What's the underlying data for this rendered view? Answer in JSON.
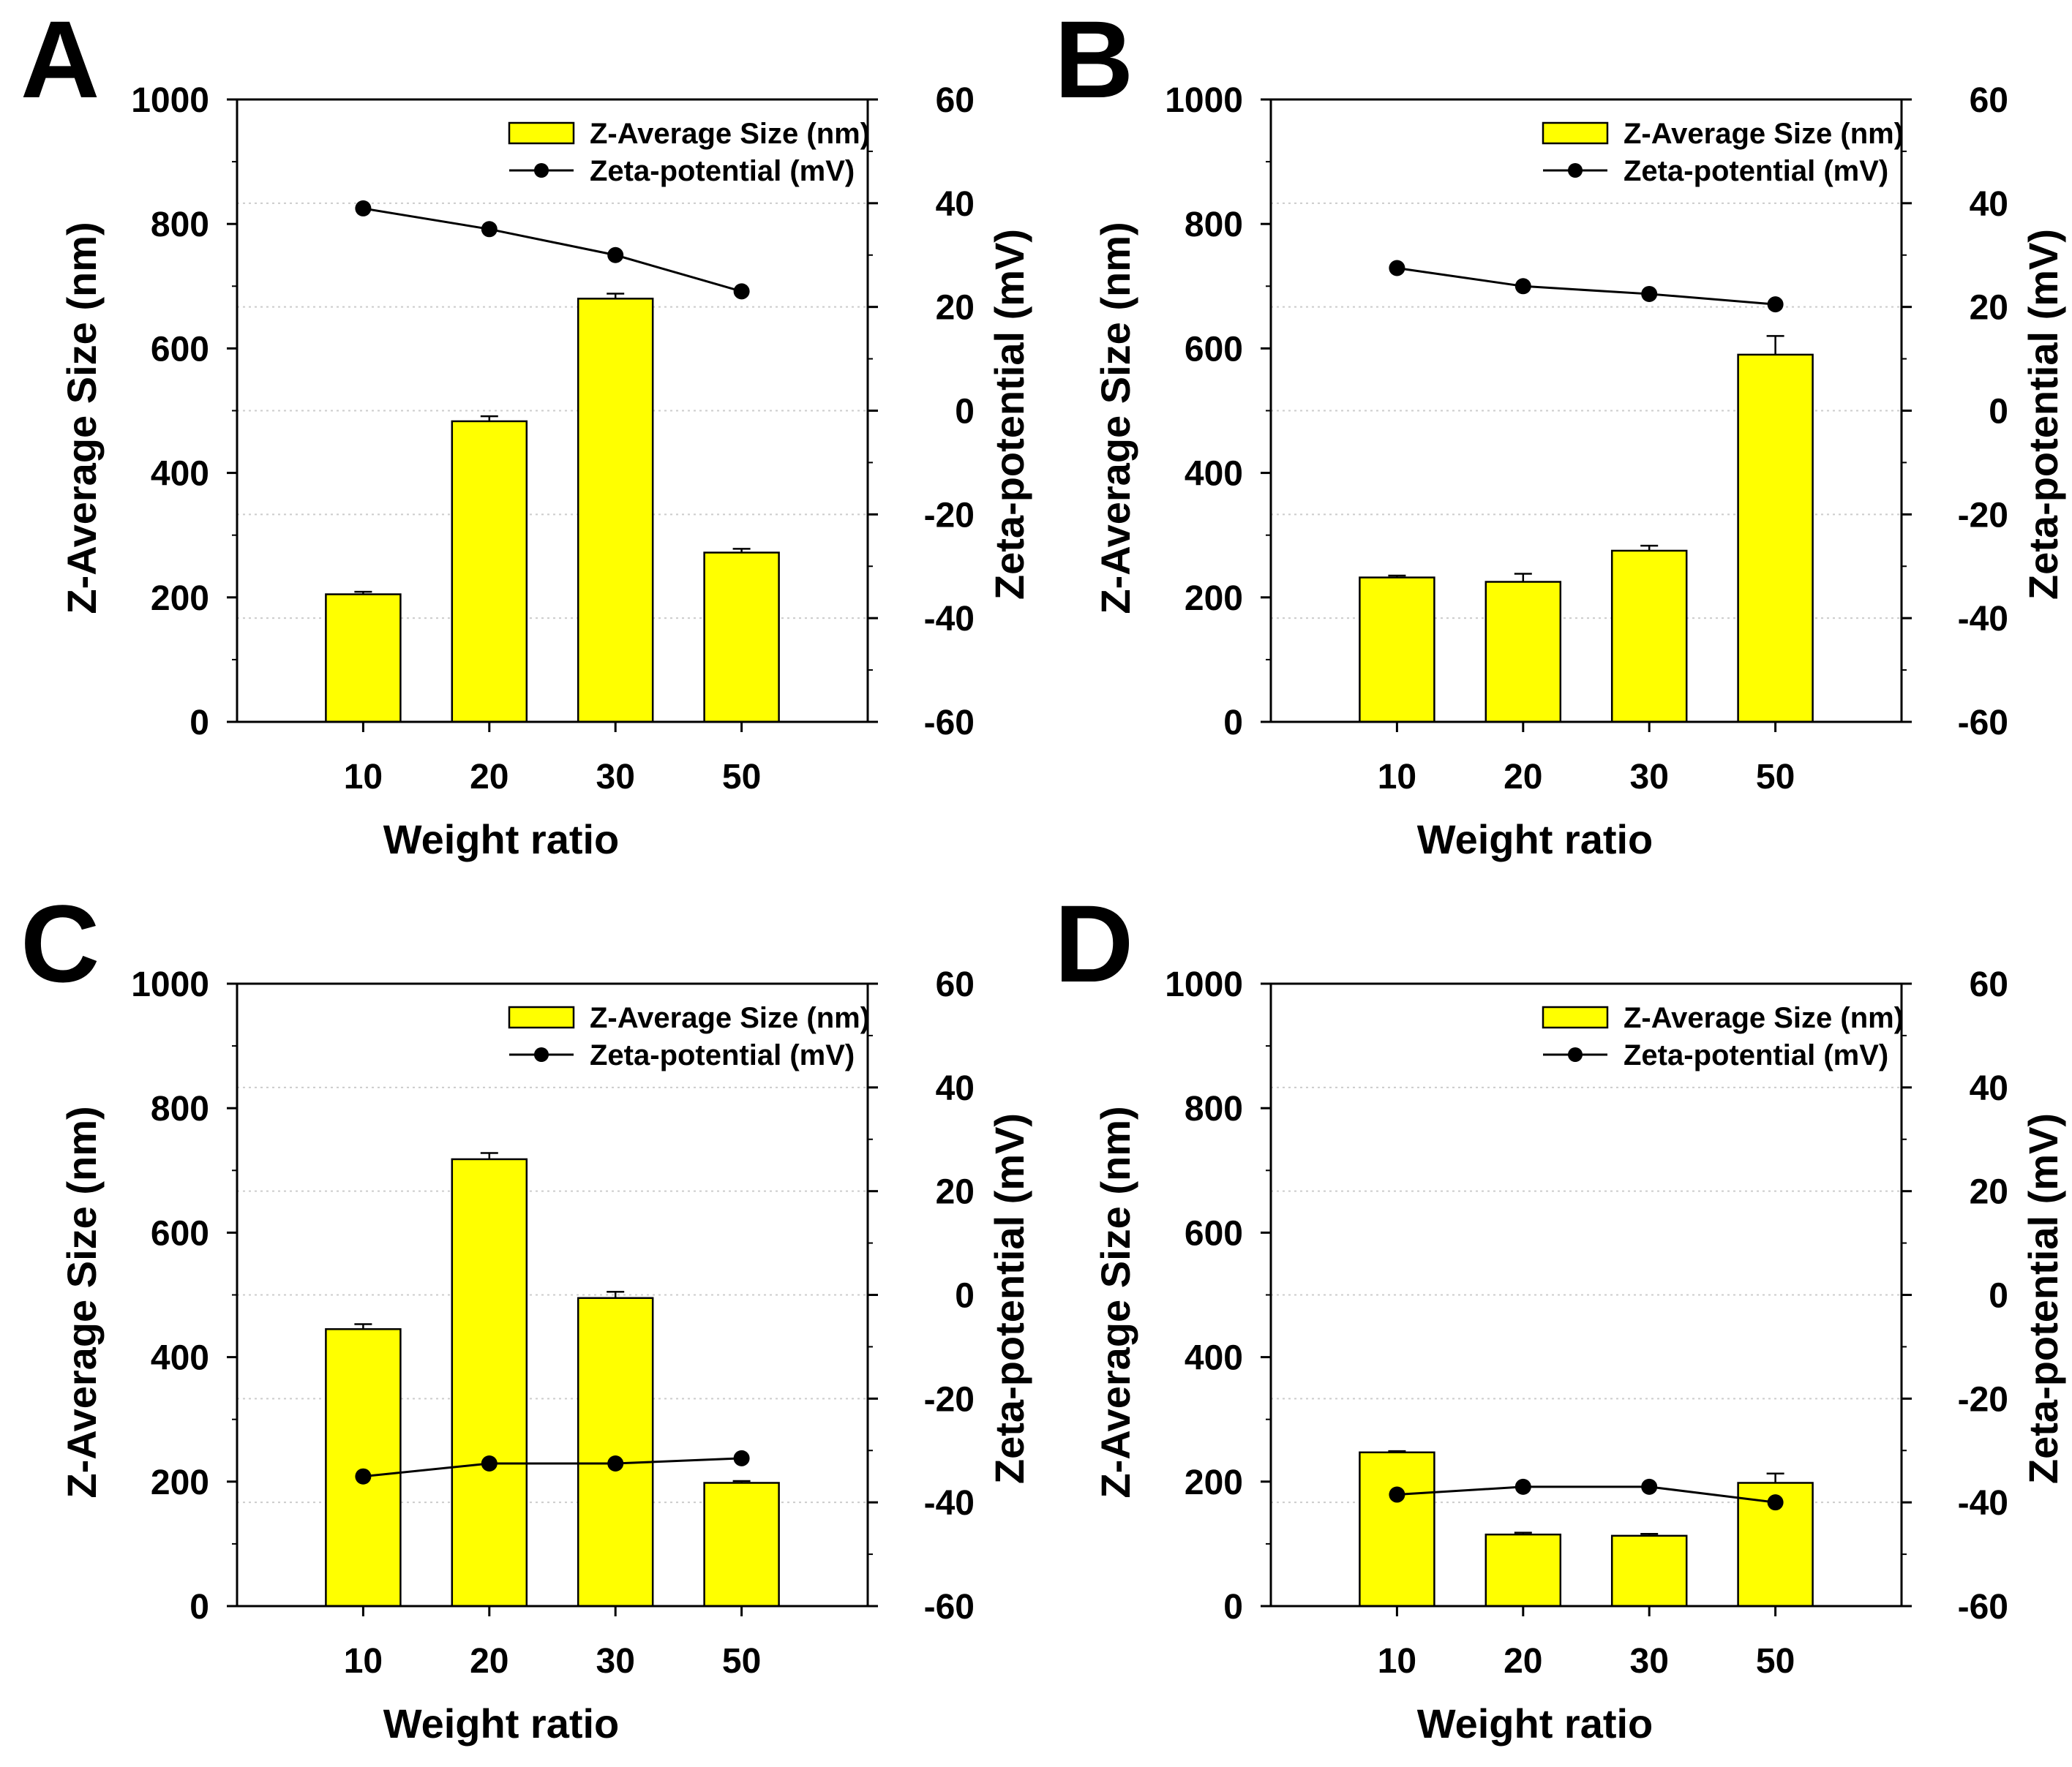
{
  "figure": {
    "style": {
      "bar_fill": "#ffff00",
      "bar_stroke": "#000000",
      "line_color": "#000000",
      "marker_color": "#000000",
      "grid_color": "#cccccc",
      "background": "#ffffff"
    }
  },
  "chart_data": [
    {
      "panel": "A",
      "type": "bar",
      "categories": [
        "10",
        "20",
        "30",
        "50"
      ],
      "xlabel": "Weight ratio",
      "ylabel": "Z-Average Size (nm)",
      "ylim": [
        0,
        1000
      ],
      "yticks": [
        "0",
        "200",
        "400",
        "600",
        "800",
        "1000"
      ],
      "y2label": "Zeta-potential (mV)",
      "y2lim": [
        -60,
        60
      ],
      "y2ticks": [
        "-60",
        "-40",
        "-20",
        "0",
        "20",
        "40",
        "60"
      ],
      "legend": {
        "bar": "Z-Average Size (nm)",
        "line": "Zeta-potential (mV)"
      },
      "series": [
        {
          "name": "Z-Average Size (nm)",
          "kind": "bar",
          "axis": "left",
          "values": [
            205,
            483,
            680,
            272
          ],
          "errors": [
            4,
            8,
            8,
            6
          ]
        },
        {
          "name": "Zeta-potential (mV)",
          "kind": "line",
          "axis": "right",
          "values": [
            39,
            35,
            30,
            23
          ]
        }
      ]
    },
    {
      "panel": "B",
      "type": "bar",
      "categories": [
        "10",
        "20",
        "30",
        "50"
      ],
      "xlabel": "Weight ratio",
      "ylabel": "Z-Average Size (nm)",
      "ylim": [
        0,
        1000
      ],
      "yticks": [
        "0",
        "200",
        "400",
        "600",
        "800",
        "1000"
      ],
      "y2label": "Zeta-potential (mV)",
      "y2lim": [
        -60,
        60
      ],
      "y2ticks": [
        "-60",
        "-40",
        "-20",
        "0",
        "20",
        "40",
        "60"
      ],
      "legend": {
        "bar": "Z-Average Size (nm)",
        "line": "Zeta-potential (mV)"
      },
      "series": [
        {
          "name": "Z-Average Size (nm)",
          "kind": "bar",
          "axis": "left",
          "values": [
            232,
            225,
            275,
            590
          ],
          "errors": [
            3,
            13,
            8,
            30
          ]
        },
        {
          "name": "Zeta-potential (mV)",
          "kind": "line",
          "axis": "right",
          "values": [
            27.5,
            24,
            22.5,
            20.5
          ]
        }
      ]
    },
    {
      "panel": "C",
      "type": "bar",
      "categories": [
        "10",
        "20",
        "30",
        "50"
      ],
      "xlabel": "Weight ratio",
      "ylabel": "Z-Average Size (nm)",
      "ylim": [
        0,
        1000
      ],
      "yticks": [
        "0",
        "200",
        "400",
        "600",
        "800",
        "1000"
      ],
      "y2label": "Zeta-potential (mV)",
      "y2lim": [
        -60,
        60
      ],
      "y2ticks": [
        "-60",
        "-40",
        "-20",
        "0",
        "20",
        "40",
        "60"
      ],
      "legend": {
        "bar": "Z-Average Size (nm)",
        "line": "Zeta-potential (mV)"
      },
      "series": [
        {
          "name": "Z-Average Size (nm)",
          "kind": "bar",
          "axis": "left",
          "values": [
            445,
            718,
            495,
            198
          ],
          "errors": [
            8,
            10,
            10,
            3
          ]
        },
        {
          "name": "Zeta-potential (mV)",
          "kind": "line",
          "axis": "right",
          "values": [
            -35,
            -32.5,
            -32.5,
            -31.5
          ]
        }
      ]
    },
    {
      "panel": "D",
      "type": "bar",
      "categories": [
        "10",
        "20",
        "30",
        "50"
      ],
      "xlabel": "Weight ratio",
      "ylabel": "Z-Average Size (nm)",
      "ylim": [
        0,
        1000
      ],
      "yticks": [
        "0",
        "200",
        "400",
        "600",
        "800",
        "1000"
      ],
      "y2label": "Zeta-potential (mV)",
      "y2lim": [
        -60,
        60
      ],
      "y2ticks": [
        "-60",
        "-40",
        "-20",
        "0",
        "20",
        "40",
        "60"
      ],
      "legend": {
        "bar": "Z-Average Size (nm)",
        "line": "Zeta-potential (mV)"
      },
      "series": [
        {
          "name": "Z-Average Size (nm)",
          "kind": "bar",
          "axis": "left",
          "values": [
            247,
            115,
            113,
            198
          ],
          "errors": [
            2,
            3,
            3,
            15
          ]
        },
        {
          "name": "Zeta-potential (mV)",
          "kind": "line",
          "axis": "right",
          "values": [
            -38.5,
            -37,
            -37,
            -40
          ]
        }
      ]
    }
  ]
}
